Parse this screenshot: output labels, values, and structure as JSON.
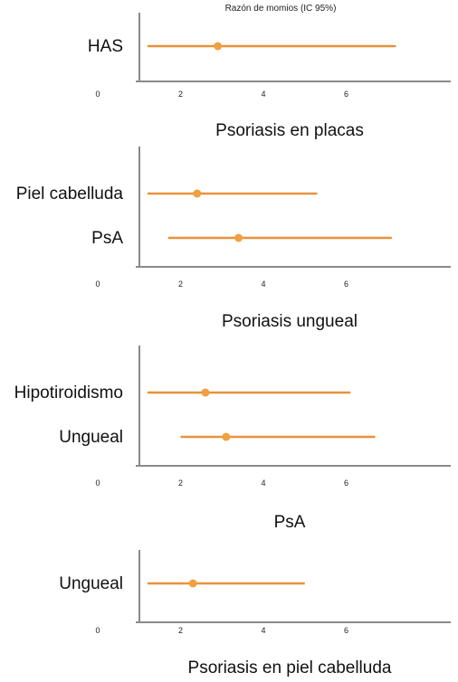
{
  "header_label": "Razón de momios (IC 95%)",
  "style": {
    "marker_color": "#f0a040",
    "line_color": "#e8923a",
    "axis_color": "#8a8a8a"
  },
  "chart_data": [
    {
      "type": "forest",
      "title": "Psoriasis en placas",
      "xlim": [
        0,
        8
      ],
      "xticks": [
        "0",
        "2",
        "4",
        "6"
      ],
      "rows": [
        {
          "label": "HAS",
          "or": 2.9,
          "ci_low": 1.2,
          "ci_high": 7.2
        }
      ]
    },
    {
      "type": "forest",
      "title": "Psoriasis ungueal",
      "xlim": [
        0,
        8
      ],
      "xticks": [
        "0",
        "2",
        "4",
        "6"
      ],
      "rows": [
        {
          "label": "Piel cabelluda",
          "or": 2.4,
          "ci_low": 1.2,
          "ci_high": 5.3
        },
        {
          "label": "PsA",
          "or": 3.4,
          "ci_low": 1.7,
          "ci_high": 7.1
        }
      ]
    },
    {
      "type": "forest",
      "title": "PsA",
      "xlim": [
        0,
        8
      ],
      "xticks": [
        "0",
        "2",
        "4",
        "6"
      ],
      "rows": [
        {
          "label": "Hipotiroidismo",
          "or": 2.6,
          "ci_low": 1.2,
          "ci_high": 6.1
        },
        {
          "label": "Ungueal",
          "or": 3.1,
          "ci_low": 2.0,
          "ci_high": 6.7
        }
      ]
    },
    {
      "type": "forest",
      "title": "Psoriasis en piel cabelluda",
      "xlim": [
        0,
        8
      ],
      "xticks": [
        "0",
        "2",
        "4",
        "6"
      ],
      "rows": [
        {
          "label": "Ungueal",
          "or": 2.3,
          "ci_low": 1.2,
          "ci_high": 5.0
        }
      ]
    }
  ]
}
